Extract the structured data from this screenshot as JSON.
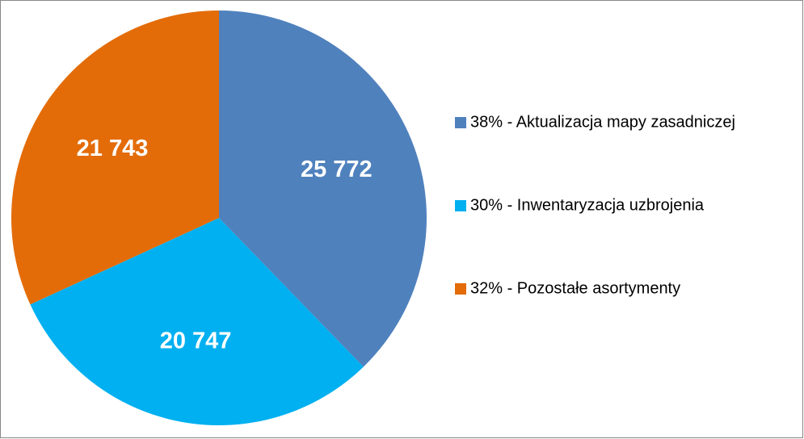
{
  "chart_data": {
    "type": "pie",
    "categories": [
      "38% - Aktualizacja mapy zasadniczej",
      "30% - Inwentaryzacja uzbrojenia",
      "32% - Pozostałe asortymenty"
    ],
    "values": [
      25772,
      20747,
      21743
    ],
    "value_labels": [
      "25 772",
      "20 747",
      "21 743"
    ],
    "colors": [
      "#4f81bd",
      "#00b0f0",
      "#e36c09"
    ],
    "legend": "right"
  }
}
